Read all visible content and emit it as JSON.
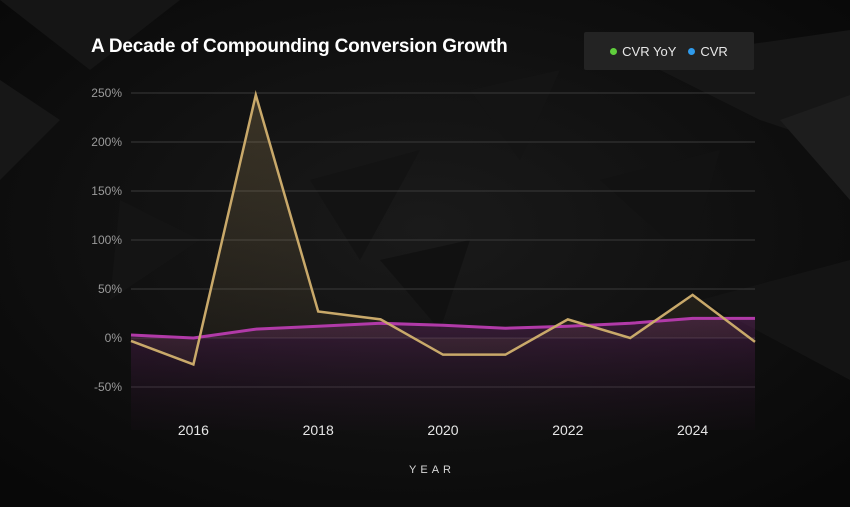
{
  "chart_data": {
    "type": "line",
    "title": "A Decade of Compounding Conversion Growth",
    "xlabel": "YEAR",
    "ylabel": "",
    "ylim": [
      -50,
      250
    ],
    "yticks": [
      250,
      200,
      150,
      100,
      50,
      0,
      -50
    ],
    "ytick_labels": [
      "250%",
      "200%",
      "150%",
      "100%",
      "50%",
      "0%",
      "-50%"
    ],
    "xticks": [
      "2016",
      "2018",
      "2020",
      "2022",
      "2024"
    ],
    "x": [
      2015,
      2016,
      2017,
      2018,
      2019,
      2020,
      2021,
      2022,
      2023,
      2024,
      2025
    ],
    "series": [
      {
        "name": "CVR YoY",
        "color": "#c9a96a",
        "values": [
          -3,
          -27,
          248,
          27,
          19,
          -17,
          -17,
          19,
          0,
          44,
          -4
        ]
      },
      {
        "name": "CVR",
        "color": "#b13aa8",
        "values": [
          3,
          0,
          9,
          12,
          15,
          13,
          10,
          12,
          15,
          20,
          20
        ]
      }
    ],
    "legend": {
      "position": "top-right",
      "items": [
        {
          "label": "CVR YoY",
          "color": "#5fce3c"
        },
        {
          "label": "CVR",
          "color": "#2f9bec"
        }
      ]
    },
    "grid": true
  }
}
